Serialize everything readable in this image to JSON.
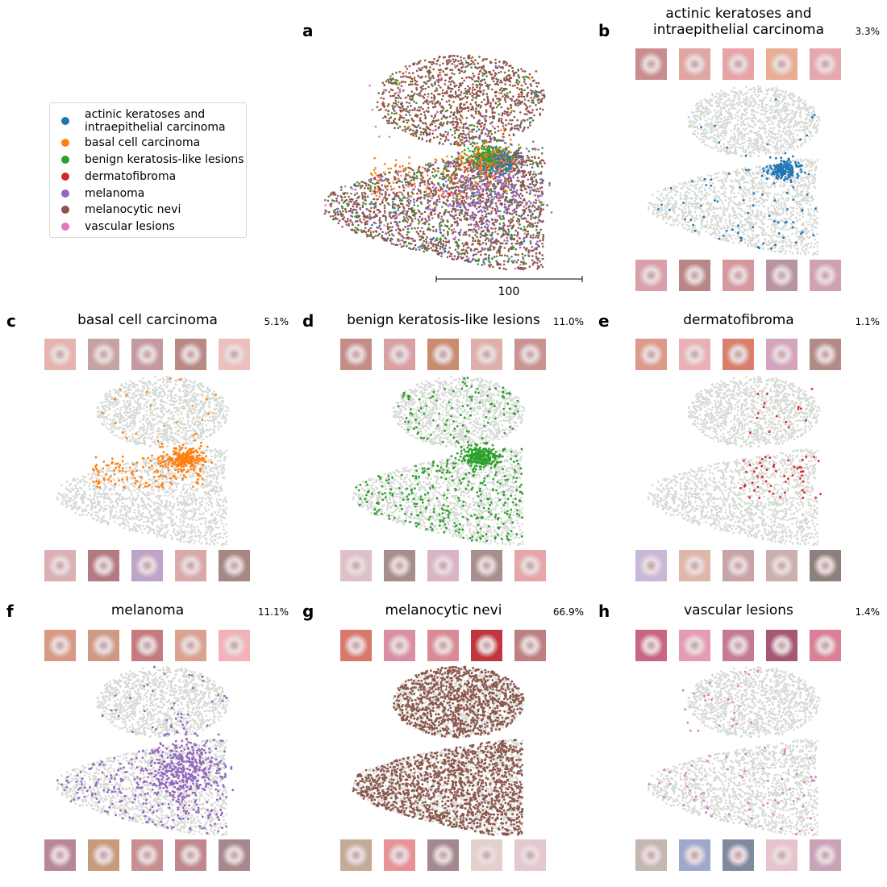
{
  "legend": {
    "items": [
      {
        "label_line1": "actinic keratoses and",
        "label_line2": "intraepithelial carcinoma",
        "color": "#1f77b4"
      },
      {
        "label_line1": "basal cell carcinoma",
        "label_line2": "",
        "color": "#ff7f0e"
      },
      {
        "label_line1": "benign keratosis-like lesions",
        "label_line2": "",
        "color": "#2ca02c"
      },
      {
        "label_line1": "dermatofibroma",
        "label_line2": "",
        "color": "#d62728"
      },
      {
        "label_line1": "melanoma",
        "label_line2": "",
        "color": "#9467bd"
      },
      {
        "label_line1": "melanocytic nevi",
        "label_line2": "",
        "color": "#8c564b"
      },
      {
        "label_line1": "vascular lesions",
        "label_line2": "",
        "color": "#e377c2"
      }
    ]
  },
  "background_point_color": "#d6d9d4",
  "scalebar_label": "100",
  "panels": [
    {
      "letter": "a",
      "title_line1": "",
      "title_line2": "",
      "percent": ""
    },
    {
      "letter": "b",
      "title_line1": "actinic keratoses and",
      "title_line2": "intraepithelial carcinoma",
      "percent": "3.3%"
    },
    {
      "letter": "c",
      "title_line1": "basal cell carcinoma",
      "title_line2": "",
      "percent": "5.1%"
    },
    {
      "letter": "d",
      "title_line1": "benign keratosis-like lesions",
      "title_line2": "",
      "percent": "11.0%"
    },
    {
      "letter": "e",
      "title_line1": "dermatofibroma",
      "title_line2": "",
      "percent": "1.1%"
    },
    {
      "letter": "f",
      "title_line1": "melanoma",
      "title_line2": "",
      "percent": "11.1%"
    },
    {
      "letter": "g",
      "title_line1": "melanocytic nevi",
      "title_line2": "",
      "percent": "66.9%"
    },
    {
      "letter": "h",
      "title_line1": "vascular lesions",
      "title_line2": "",
      "percent": "1.4%"
    }
  ],
  "chart_data": {
    "type": "scatter",
    "description_of_embedding": "",
    "scale_bar_value": 100,
    "series": [
      {
        "name": "actinic keratoses and intraepithelial carcinoma",
        "share_percent": 3.3,
        "color": "#1f77b4"
      },
      {
        "name": "basal cell carcinoma",
        "share_percent": 5.1,
        "color": "#ff7f0e"
      },
      {
        "name": "benign keratosis-like lesions",
        "share_percent": 11.0,
        "color": "#2ca02c"
      },
      {
        "name": "dermatofibroma",
        "share_percent": 1.1,
        "color": "#d62728"
      },
      {
        "name": "melanoma",
        "share_percent": 11.1,
        "color": "#9467bd"
      },
      {
        "name": "melanocytic nevi",
        "share_percent": 66.9,
        "color": "#8c564b"
      },
      {
        "name": "vascular lesions",
        "share_percent": 1.4,
        "color": "#e377c2"
      }
    ],
    "thumbnail_tones": {
      "b": {
        "top": [
          "#c98d8f",
          "#e0a6a2",
          "#e7a3a8",
          "#e8ad94",
          "#e6a8ad"
        ],
        "bottom": [
          "#d8a0a8",
          "#b98686",
          "#d4989e",
          "#b7949f",
          "#cfa2b3"
        ]
      },
      "c": {
        "top": [
          "#e6b3b1",
          "#c6a3a3",
          "#c59a9e",
          "#b88a86",
          "#ecc0bb"
        ],
        "bottom": [
          "#dab0b3",
          "#b47a82",
          "#bea4c6",
          "#d9a9a8",
          "#a58884"
        ]
      },
      "d": {
        "top": [
          "#c48e86",
          "#d8a0a3",
          "#c98c6f",
          "#dfb0a9",
          "#c99293"
        ],
        "bottom": [
          "#dcc1c7",
          "#a68e8c",
          "#dab4c6",
          "#a88f8e",
          "#e6a6a7"
        ]
      },
      "e": {
        "top": [
          "#dd9a8a",
          "#eab0b5",
          "#d97f6c",
          "#d4a4be",
          "#b38b86"
        ],
        "bottom": [
          "#c8b8d8",
          "#dfb6a8",
          "#c8a3a8",
          "#cbb0ad",
          "#8c7f7c"
        ]
      },
      "f": {
        "top": [
          "#d89a85",
          "#cf9a84",
          "#c57b7e",
          "#d9a38f",
          "#f2b3b8"
        ],
        "bottom": [
          "#b7869a",
          "#c89a7c",
          "#c98f90",
          "#c0888d",
          "#a8888c"
        ]
      },
      "g": {
        "top": [
          "#d9796b",
          "#d88fa1",
          "#d98a95",
          "#c0363c",
          "#bb8180"
        ]
      },
      "g_bottom": [
        "#c3ab98",
        "#e89293",
        "#a2898e",
        "#e3d0cc",
        "#e5c8cf"
      ],
      "h": {
        "top": [
          "#c86682",
          "#e49cb5",
          "#c47b94",
          "#a65776",
          "#d97f96"
        ],
        "bottom": [
          "#c4b7b0",
          "#9fa7cc",
          "#7f899f",
          "#e6c4cc",
          "#c9a2b8"
        ]
      }
    }
  }
}
